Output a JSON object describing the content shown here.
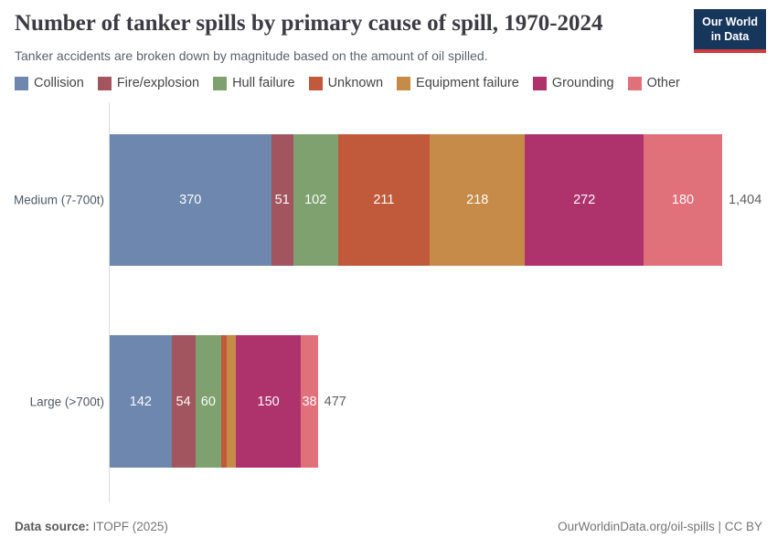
{
  "header": {
    "title": "Number of tanker spills by primary cause of spill, 1970-2024",
    "subtitle": "Tanker accidents are broken down by magnitude based on the amount of oil spilled."
  },
  "logo": {
    "line1": "Our World",
    "line2": "in Data",
    "bg_color": "#16365c",
    "accent_color": "#d13b3f"
  },
  "chart_data": {
    "type": "bar",
    "orientation": "horizontal",
    "stacked": true,
    "grid": false,
    "legend_position": "top",
    "title": "Number of tanker spills by primary cause of spill, 1970-2024",
    "categories": [
      "Medium (7-700t)",
      "Large (>700t)"
    ],
    "series": [
      {
        "name": "Collision",
        "color": "#6d87ae",
        "values": [
          370,
          142
        ]
      },
      {
        "name": "Fire/explosion",
        "color": "#a2555e",
        "values": [
          51,
          54
        ]
      },
      {
        "name": "Hull failure",
        "color": "#7ea16f",
        "values": [
          102,
          60
        ]
      },
      {
        "name": "Unknown",
        "color": "#c05a3b",
        "values": [
          211,
          13
        ]
      },
      {
        "name": "Equipment failure",
        "color": "#c68b49",
        "values": [
          218,
          20
        ]
      },
      {
        "name": "Grounding",
        "color": "#ae336d",
        "values": [
          272,
          150
        ]
      },
      {
        "name": "Other",
        "color": "#e0707a",
        "values": [
          180,
          38
        ]
      }
    ],
    "totals": [
      "1,404",
      "477"
    ],
    "xlim": [
      0,
      1404
    ]
  },
  "footer": {
    "source_label": "Data source:",
    "source_value": "ITOPF (2025)",
    "credit": "OurWorldinData.org/oil-spills | CC BY"
  }
}
